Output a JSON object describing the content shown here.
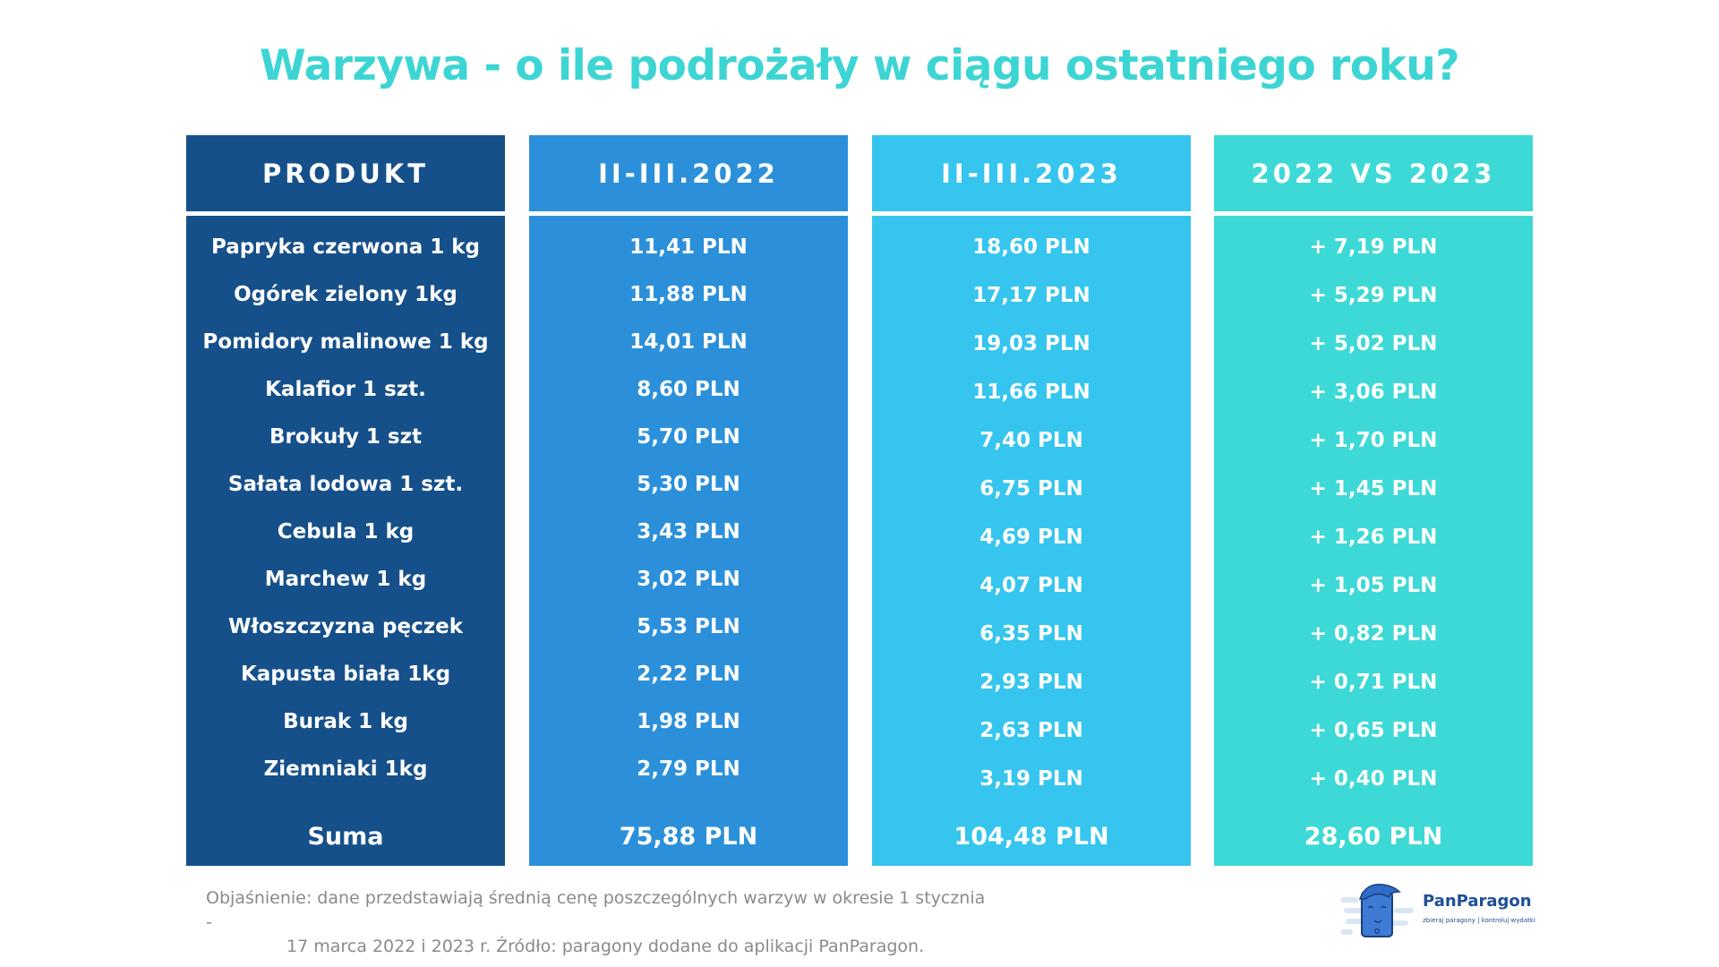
{
  "title": "Warzywa - o ile podrożały w ciągu ostatniego roku?",
  "colors": {
    "produkt": "#16508a",
    "y2022": "#2b90d9",
    "y2023": "#35c5ee",
    "diff": "#3dd9d6",
    "title": "#3dd5d3"
  },
  "headers": [
    "PRODUKT",
    "II-III.2022",
    "II-III.2023",
    "2022 VS 2023"
  ],
  "rows": [
    {
      "product": "Papryka czerwona 1 kg",
      "p2022": "11,41 PLN",
      "p2023": "18,60 PLN",
      "diff": "+ 7,19 PLN"
    },
    {
      "product": "Ogórek zielony 1kg",
      "p2022": "11,88 PLN",
      "p2023": "17,17 PLN",
      "diff": "+ 5,29 PLN"
    },
    {
      "product": "Pomidory malinowe 1 kg",
      "p2022": "14,01 PLN",
      "p2023": "19,03 PLN",
      "diff": "+ 5,02 PLN"
    },
    {
      "product": "Kalafior 1 szt.",
      "p2022": "8,60 PLN",
      "p2023": "11,66 PLN",
      "diff": "+ 3,06 PLN"
    },
    {
      "product": "Brokuły 1 szt",
      "p2022": "5,70 PLN",
      "p2023": "7,40 PLN",
      "diff": "+ 1,70 PLN"
    },
    {
      "product": "Sałata lodowa 1 szt.",
      "p2022": "5,30 PLN",
      "p2023": "6,75 PLN",
      "diff": "+ 1,45 PLN"
    },
    {
      "product": "Cebula 1 kg",
      "p2022": "3,43 PLN",
      "p2023": "4,69 PLN",
      "diff": "+ 1,26 PLN"
    },
    {
      "product": "Marchew 1 kg",
      "p2022": "3,02 PLN",
      "p2023": "4,07 PLN",
      "diff": "+ 1,05 PLN"
    },
    {
      "product": "Włoszczyzna pęczek",
      "p2022": "5,53 PLN",
      "p2023": "6,35 PLN",
      "diff": "+ 0,82 PLN"
    },
    {
      "product": "Kapusta biała 1kg",
      "p2022": "2,22 PLN",
      "p2023": "2,93 PLN",
      "diff": "+ 0,71 PLN"
    },
    {
      "product": "Burak 1 kg",
      "p2022": "1,98 PLN",
      "p2023": "2,63 PLN",
      "diff": "+ 0,65 PLN"
    },
    {
      "product": "Ziemniaki 1kg",
      "p2022": "2,79 PLN",
      "p2023": "3,19 PLN",
      "diff": "+ 0,40 PLN"
    }
  ],
  "sum": {
    "product": "Suma",
    "p2022": "75,88 PLN",
    "p2023": "104,48 PLN",
    "diff": "28,60 PLN"
  },
  "footnote": {
    "line1": "Objaśnienie: dane przedstawiają średnią cenę poszczególnych warzyw w okresie 1 stycznia -",
    "line2": "17 marca 2022 i 2023 r.  Źródło: paragony dodane do aplikacji PanParagon."
  },
  "logo": {
    "name": "PanParagon",
    "tagline": "zbieraj paragony | kontroluj wydatki"
  }
}
